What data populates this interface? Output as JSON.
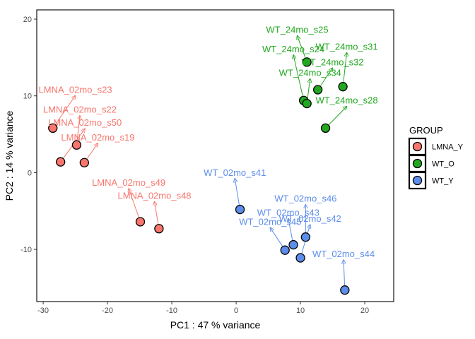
{
  "chart_data": {
    "type": "scatter",
    "xlabel": "PC1 : 47 % variance",
    "ylabel": "PC2 : 14 % variance",
    "xlim": [
      -31,
      24.5
    ],
    "ylim": [
      -16.8,
      21.2
    ],
    "xticks": [
      -30,
      -20,
      -10,
      0,
      10,
      20
    ],
    "yticks": [
      -10,
      0,
      10,
      20
    ],
    "xtick_labels": [
      "-30",
      "-20",
      "-10",
      "0",
      "10",
      "20"
    ],
    "ytick_labels": [
      "-10",
      "0",
      "10",
      "20"
    ],
    "grid": false,
    "legend": {
      "title": "GROUP",
      "placement": "right",
      "entries": [
        {
          "label": "LMNA_Y",
          "color": "#F8766D"
        },
        {
          "label": "WT_O",
          "color": "#21A81F"
        },
        {
          "label": "WT_Y",
          "color": "#5C8DEB"
        }
      ]
    },
    "series": [
      {
        "name": "LMNA_Y",
        "color": "#F8766D",
        "points": [
          {
            "label": "LMNA_02mo_s23",
            "x": -28.5,
            "y": 5.8,
            "lx": -25,
            "ly": 10.4
          },
          {
            "label": "LMNA_02mo_s22",
            "x": -24.8,
            "y": 3.6,
            "lx": -24.3,
            "ly": 7.8
          },
          {
            "label": "LMNA_02mo_s50",
            "x": -27.3,
            "y": 1.4,
            "lx": -23.5,
            "ly": 6.1
          },
          {
            "label": "LMNA_02mo_s19",
            "x": -23.6,
            "y": 1.3,
            "lx": -21.5,
            "ly": 4.2
          },
          {
            "label": "LMNA_02mo_s49",
            "x": -14.9,
            "y": -6.4,
            "lx": -16.7,
            "ly": -1.7
          },
          {
            "label": "LMNA_02mo_s48",
            "x": -12.0,
            "y": -7.3,
            "lx": -12.7,
            "ly": -3.4
          }
        ]
      },
      {
        "name": "WT_O",
        "color": "#21A81F",
        "points": [
          {
            "label": "WT_24mo_s25",
            "x": 11.0,
            "y": 14.4,
            "lx": 9.5,
            "ly": 18.2
          },
          {
            "label": "WT_24mo_s24",
            "x": 10.5,
            "y": 9.4,
            "lx": 8.9,
            "ly": 15.7
          },
          {
            "label": "WT_24mo_s31",
            "x": 16.6,
            "y": 11.2,
            "lx": 17.2,
            "ly": 16.0
          },
          {
            "label": "WT_24mo_s32",
            "x": 12.7,
            "y": 10.8,
            "lx": 15.0,
            "ly": 14.0
          },
          {
            "label": "WT_24mo_s34",
            "x": 11.0,
            "y": 9.0,
            "lx": 11.5,
            "ly": 12.6
          },
          {
            "label": "WT_24mo_s28",
            "x": 13.9,
            "y": 5.8,
            "lx": 17.2,
            "ly": 9.0
          }
        ]
      },
      {
        "name": "WT_Y",
        "color": "#5C8DEB",
        "points": [
          {
            "label": "WT_02mo_s41",
            "x": 0.6,
            "y": -4.8,
            "lx": -0.2,
            "ly": -0.4
          },
          {
            "label": "WT_02mo_s46",
            "x": 10.8,
            "y": -8.4,
            "lx": 10.8,
            "ly": -3.8
          },
          {
            "label": "WT_02mo_s43",
            "x": 8.9,
            "y": -9.4,
            "lx": 8.1,
            "ly": -5.6
          },
          {
            "label": "WT_02mo_s45",
            "x": 7.6,
            "y": -10.1,
            "lx": 5.3,
            "ly": -6.8
          },
          {
            "label": "WT_02mo_s42",
            "x": 10.0,
            "y": -11.1,
            "lx": 11.5,
            "ly": -6.4
          },
          {
            "label": "WT_02mo_s44",
            "x": 16.9,
            "y": -15.3,
            "lx": 16.7,
            "ly": -11.0
          }
        ]
      }
    ]
  }
}
